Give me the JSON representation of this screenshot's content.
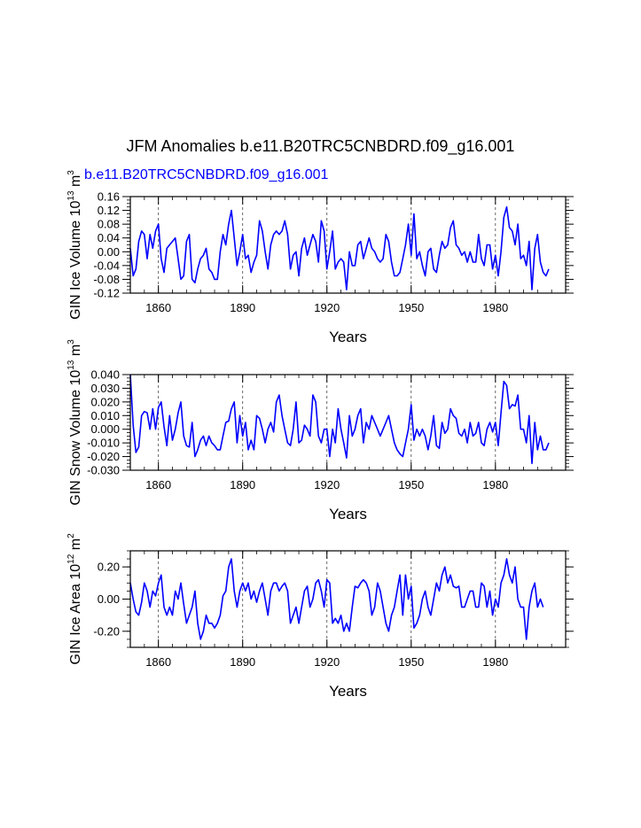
{
  "title": "JFM Anomalies b.e11.B20TRC5CNBDRD.f09_g16.001",
  "subtitle": "b.e11.B20TRC5CNBDRD.f09_g16.001",
  "line_color": "#0000ff",
  "chart_data": [
    {
      "type": "line",
      "ylabel_main": "GIN Ice Volume 10",
      "ylabel_sup": "13",
      "ylabel_unit": " m",
      "ylabel_unit_sup": "3",
      "xlabel": "Years",
      "xlim": [
        1850,
        2005
      ],
      "ylim": [
        -0.12,
        0.16
      ],
      "yticks": [
        -0.12,
        -0.08,
        -0.04,
        0.0,
        0.04,
        0.08,
        0.12,
        0.16
      ],
      "ytick_labels": [
        "-0.12",
        "-0.08",
        "-0.04",
        "0.00",
        "0.04",
        "0.08",
        "0.12",
        "0.16"
      ],
      "xticks": [
        1860,
        1890,
        1920,
        1950,
        1980
      ],
      "xtick_labels": [
        "1860",
        "1890",
        "1920",
        "1950",
        "1980"
      ],
      "x_start": 1850,
      "values": [
        0.01,
        -0.07,
        -0.05,
        0.03,
        0.06,
        0.05,
        -0.02,
        0.05,
        0.01,
        0.06,
        0.08,
        -0.02,
        -0.06,
        0.01,
        0.02,
        0.03,
        0.04,
        -0.02,
        -0.08,
        -0.07,
        0.03,
        0.05,
        -0.08,
        -0.09,
        -0.05,
        -0.02,
        -0.01,
        0.01,
        -0.05,
        -0.06,
        -0.08,
        -0.08,
        0.0,
        0.05,
        0.02,
        0.08,
        0.12,
        0.04,
        -0.04,
        0.0,
        0.05,
        -0.02,
        -0.01,
        -0.06,
        -0.03,
        -0.01,
        0.09,
        0.06,
        0.0,
        -0.05,
        0.02,
        0.05,
        0.06,
        0.05,
        0.06,
        0.09,
        0.05,
        -0.05,
        -0.01,
        0.0,
        -0.07,
        0.01,
        0.04,
        -0.01,
        0.02,
        0.05,
        0.03,
        -0.03,
        0.09,
        0.06,
        -0.05,
        0.0,
        0.06,
        -0.05,
        -0.03,
        -0.02,
        -0.03,
        -0.11,
        0.0,
        -0.04,
        -0.04,
        0.02,
        0.03,
        -0.02,
        0.01,
        0.04,
        0.01,
        0.0,
        -0.02,
        -0.03,
        -0.02,
        0.05,
        0.03,
        -0.03,
        -0.07,
        -0.07,
        -0.06,
        -0.02,
        0.02,
        0.08,
        -0.01,
        0.11,
        -0.02,
        0.0,
        -0.04,
        -0.07,
        0.0,
        0.01,
        -0.05,
        -0.06,
        -0.01,
        0.03,
        0.01,
        0.02,
        0.07,
        0.09,
        0.02,
        0.01,
        -0.01,
        0.0,
        -0.03,
        0.0,
        -0.03,
        -0.03,
        0.05,
        -0.02,
        -0.04,
        0.02,
        0.02,
        -0.05,
        -0.01,
        -0.07,
        0.0,
        0.1,
        0.13,
        0.07,
        0.06,
        0.02,
        0.08,
        -0.02,
        -0.01,
        -0.04,
        0.03,
        -0.11,
        0.01,
        0.05,
        -0.03,
        -0.06,
        -0.07,
        -0.05
      ]
    },
    {
      "type": "line",
      "ylabel_main": "GIN Snow Volume 10",
      "ylabel_sup": "13",
      "ylabel_unit": " m",
      "ylabel_unit_sup": "3",
      "xlabel": "Years",
      "xlim": [
        1850,
        2005
      ],
      "ylim": [
        -0.03,
        0.04
      ],
      "yticks": [
        -0.03,
        -0.02,
        -0.01,
        0.0,
        0.01,
        0.02,
        0.03,
        0.04
      ],
      "ytick_labels": [
        "-0.030",
        "-0.020",
        "-0.010",
        "0.000",
        "0.010",
        "0.020",
        "0.030",
        "0.040"
      ],
      "xticks": [
        1860,
        1890,
        1920,
        1950,
        1980
      ],
      "xtick_labels": [
        "1860",
        "1890",
        "1920",
        "1950",
        "1980"
      ],
      "x_start": 1850,
      "values": [
        0.04,
        0.003,
        -0.017,
        -0.013,
        0.01,
        0.013,
        0.012,
        0.0,
        0.015,
        0.0,
        0.016,
        0.02,
        0.002,
        -0.012,
        0.01,
        -0.008,
        0.0,
        0.012,
        0.02,
        -0.005,
        -0.012,
        -0.013,
        0.005,
        -0.02,
        -0.015,
        -0.008,
        -0.005,
        -0.012,
        -0.005,
        -0.01,
        -0.012,
        -0.015,
        -0.015,
        -0.005,
        0.005,
        0.006,
        0.015,
        0.02,
        -0.01,
        0.01,
        -0.005,
        0.005,
        -0.015,
        -0.008,
        -0.015,
        0.01,
        0.008,
        0.0,
        -0.01,
        0.0,
        0.005,
        -0.002,
        0.02,
        0.025,
        0.01,
        0.0,
        -0.01,
        -0.012,
        0.0,
        0.02,
        -0.01,
        -0.008,
        0.003,
        0.0,
        -0.005,
        0.025,
        0.02,
        -0.005,
        -0.01,
        0.0,
        0.0,
        -0.02,
        0.0,
        -0.01,
        0.015,
        0.0,
        -0.01,
        -0.021,
        0.01,
        -0.005,
        0.0,
        0.01,
        0.015,
        -0.01,
        0.005,
        0.0,
        0.01,
        0.005,
        0.0,
        -0.005,
        0.0,
        0.005,
        0.01,
        0.0,
        -0.01,
        -0.015,
        -0.018,
        -0.02,
        -0.01,
        0.0,
        0.018,
        -0.008,
        0.0,
        -0.005,
        0.0,
        -0.005,
        -0.015,
        -0.005,
        0.01,
        -0.012,
        -0.014,
        0.005,
        -0.003,
        0.0,
        0.015,
        0.01,
        0.008,
        -0.003,
        -0.005,
        0.0,
        -0.01,
        0.005,
        -0.005,
        -0.003,
        0.005,
        -0.01,
        -0.012,
        0.0,
        0.005,
        -0.002,
        0.005,
        -0.012,
        0.012,
        0.035,
        0.032,
        0.015,
        0.018,
        0.017,
        0.025,
        0.0,
        0.0,
        -0.01,
        0.01,
        -0.025,
        0.005,
        -0.015,
        -0.005,
        -0.015,
        -0.015,
        -0.01
      ]
    },
    {
      "type": "line",
      "ylabel_main": "GIN Ice Area 10",
      "ylabel_sup": "12",
      "ylabel_unit": " m",
      "ylabel_unit_sup": "2",
      "xlabel": "Years",
      "xlim": [
        1850,
        2005
      ],
      "ylim": [
        -0.3,
        0.3
      ],
      "yticks": [
        -0.2,
        0.0,
        0.2
      ],
      "ytick_labels": [
        "-0.20",
        "0.00",
        "0.20"
      ],
      "xticks": [
        1860,
        1890,
        1920,
        1950,
        1980
      ],
      "xtick_labels": [
        "1860",
        "1890",
        "1920",
        "1950",
        "1980"
      ],
      "x_start": 1850,
      "values": [
        0.1,
        0.0,
        -0.08,
        -0.1,
        -0.02,
        0.1,
        0.05,
        -0.05,
        0.05,
        0.02,
        0.1,
        0.15,
        -0.05,
        -0.1,
        -0.05,
        -0.1,
        0.05,
        0.0,
        0.1,
        -0.03,
        -0.15,
        -0.1,
        -0.05,
        0.05,
        -0.15,
        -0.25,
        -0.2,
        -0.1,
        -0.15,
        -0.15,
        -0.18,
        -0.15,
        -0.1,
        0.02,
        0.05,
        0.2,
        0.25,
        0.05,
        -0.05,
        0.05,
        0.1,
        0.05,
        0.1,
        0.0,
        0.05,
        -0.02,
        0.05,
        0.1,
        0.0,
        -0.1,
        0.05,
        0.1,
        0.1,
        0.05,
        0.08,
        0.1,
        0.05,
        -0.15,
        -0.1,
        -0.05,
        -0.15,
        -0.05,
        0.05,
        0.08,
        -0.05,
        0.0,
        0.1,
        0.12,
        0.05,
        -0.05,
        0.12,
        0.1,
        -0.15,
        -0.12,
        -0.15,
        -0.1,
        -0.2,
        -0.15,
        -0.2,
        -0.05,
        0.08,
        0.07,
        0.1,
        0.12,
        0.1,
        0.05,
        -0.1,
        -0.05,
        0.1,
        0.05,
        -0.05,
        -0.15,
        -0.2,
        -0.1,
        -0.05,
        0.05,
        0.15,
        -0.1,
        0.15,
        0.0,
        0.08,
        -0.18,
        -0.15,
        -0.1,
        0.0,
        0.05,
        -0.05,
        -0.1,
        0.0,
        0.1,
        0.05,
        0.15,
        0.2,
        0.1,
        0.15,
        0.08,
        0.07,
        0.08,
        -0.05,
        -0.05,
        0.0,
        0.05,
        0.05,
        -0.05,
        -0.05,
        0.1,
        0.08,
        -0.05,
        0.05,
        -0.1,
        0.0,
        -0.05,
        0.1,
        0.15,
        0.25,
        0.15,
        0.1,
        0.2,
        0.0,
        -0.05,
        -0.05,
        -0.25,
        -0.05,
        0.05,
        0.1,
        -0.05,
        0.0,
        -0.05
      ]
    }
  ]
}
